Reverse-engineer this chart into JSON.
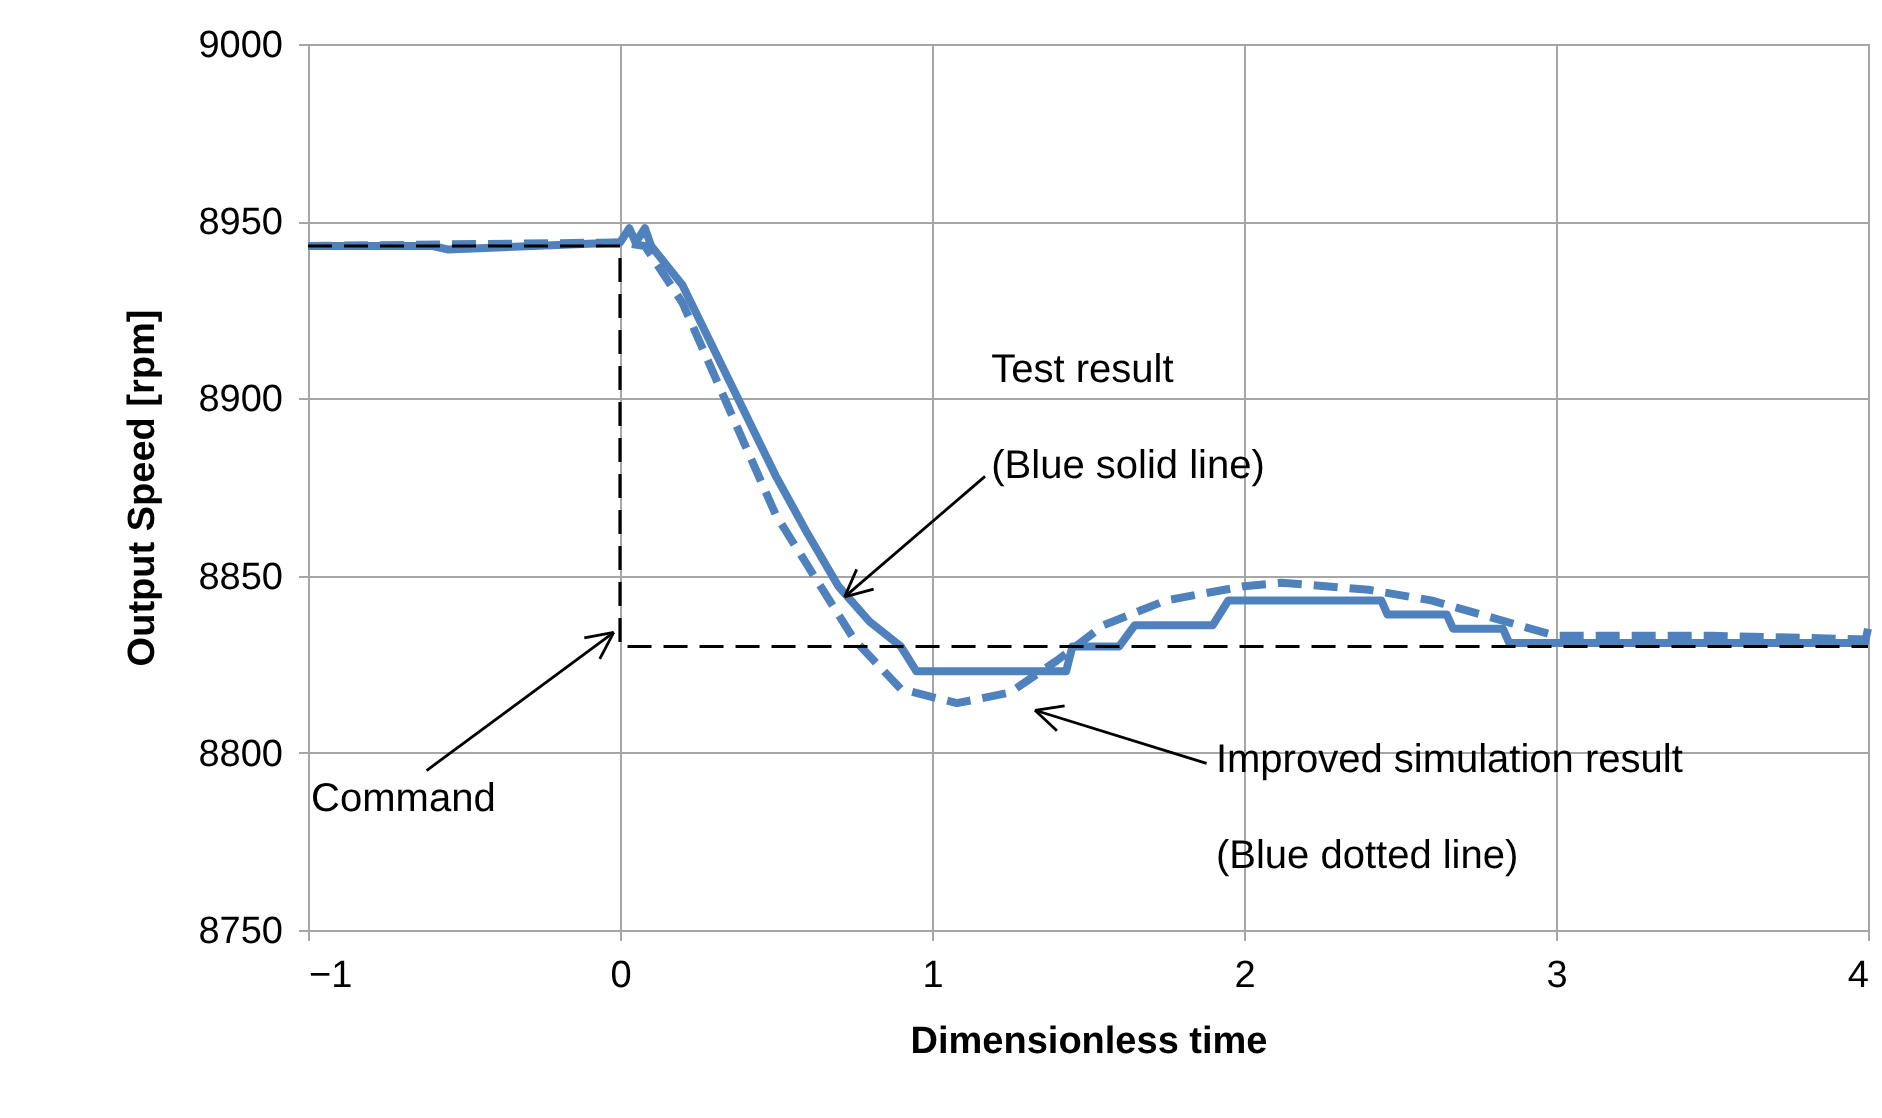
{
  "chart_data": {
    "type": "line",
    "xlabel": "Dimensionless time",
    "ylabel": "Output Speed [rpm]",
    "xlim": [
      -1,
      4
    ],
    "xticks": [
      -1,
      0,
      1,
      2,
      3,
      4
    ],
    "ylim": [
      8750,
      9000
    ],
    "yticks": [
      8750,
      8800,
      8850,
      8900,
      8950,
      9000
    ],
    "grid": true,
    "marker": "none",
    "series": [
      {
        "color": "#4f81bd",
        "line_style": "solid",
        "x": [
          -1,
          -0.6,
          -0.55,
          0,
          0.03,
          0.05,
          0.08,
          0.1,
          0.2,
          0.3,
          0.4,
          0.5,
          0.6,
          0.7,
          0.8,
          0.9,
          0.95,
          1.43,
          1.45,
          1.6,
          1.65,
          1.9,
          1.95,
          2.44,
          2.46,
          2.65,
          2.67,
          2.83,
          2.85,
          3.99,
          4
        ],
        "values": [
          8943,
          8943,
          8942,
          8944,
          8948,
          8944,
          8948,
          8943,
          8932,
          8914,
          8896,
          8878,
          8862,
          8847,
          8837,
          8830,
          8823,
          8823,
          8830,
          8830,
          8836,
          8836,
          8843,
          8843,
          8839,
          8839,
          8835,
          8835,
          8831,
          8831,
          8835
        ]
      },
      {
        "color": "#4f81bd",
        "line_style": "dashed",
        "x": [
          -1,
          0,
          0.08,
          0.2,
          0.34,
          0.5,
          0.6,
          0.75,
          0.9,
          1.08,
          1.25,
          1.4,
          1.55,
          1.75,
          2.0,
          2.12,
          2.4,
          2.6,
          2.8,
          3.0,
          3.5,
          4
        ],
        "values": [
          8943,
          8944,
          8943,
          8927,
          8899,
          8867,
          8853,
          8832,
          8818,
          8814,
          8817,
          8826,
          8836,
          8843,
          8847,
          8848,
          8846,
          8843,
          8838,
          8833,
          8833,
          8832
        ]
      },
      {
        "color": "#000000",
        "line_style": "dashed",
        "x": [
          -1,
          0,
          0,
          4
        ],
        "values": [
          8943,
          8943,
          8830,
          8830
        ]
      }
    ],
    "annotations": [
      "Test result",
      {
        "text": "(Blue solid line)",
        "x": 0.72,
        "y": 8844
      },
      "Improved simulation result",
      "(Blue dotted line)",
      {
        "text": "Command",
        "x": -0.02,
        "y": 8834
      }
    ]
  }
}
